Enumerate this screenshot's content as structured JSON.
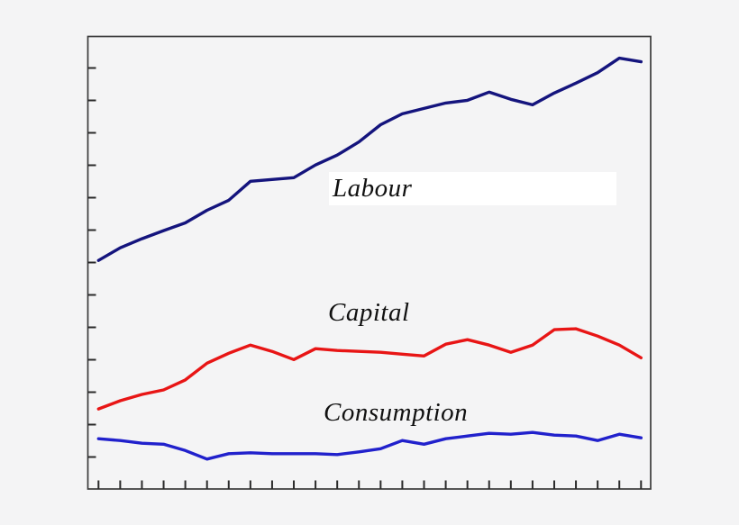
{
  "chart_data": {
    "type": "line",
    "title": "",
    "xlabel": "",
    "ylabel": "",
    "x_axis": {
      "tick_count": 26,
      "tick_labels_visible": false
    },
    "y_axis": {
      "tick_count": 13,
      "tick_labels_visible": false
    },
    "value_units": "percent of plot height (axes are unlabeled in the image)",
    "ylim": [
      0,
      100
    ],
    "grid": false,
    "legend_position": "inline-labels-on-plot",
    "series": [
      {
        "name": "Labour",
        "color": "#14147d",
        "values": [
          50.5,
          53.3,
          55.3,
          57.1,
          58.8,
          61.6,
          63.8,
          68.0,
          68.4,
          68.8,
          71.6,
          73.8,
          76.7,
          80.5,
          82.9,
          84.1,
          85.3,
          85.9,
          87.7,
          86.1,
          84.9,
          87.5,
          89.7,
          92.0,
          95.2,
          94.4
        ]
      },
      {
        "name": "Capital",
        "color": "#e81515",
        "values": [
          17.7,
          19.5,
          20.9,
          21.9,
          24.1,
          27.8,
          30.0,
          31.8,
          30.4,
          28.6,
          31.0,
          30.6,
          30.4,
          30.2,
          29.8,
          29.4,
          32.0,
          33.0,
          31.8,
          30.2,
          31.8,
          35.2,
          35.4,
          33.8,
          31.8,
          29.0
        ]
      },
      {
        "name": "Consumption",
        "color": "#2121cc",
        "values": [
          11.1,
          10.7,
          10.1,
          9.9,
          8.5,
          6.6,
          7.8,
          8.0,
          7.8,
          7.8,
          7.8,
          7.6,
          8.2,
          8.9,
          10.7,
          9.9,
          11.1,
          11.7,
          12.3,
          12.1,
          12.5,
          11.9,
          11.7,
          10.7,
          12.1,
          11.3
        ]
      }
    ],
    "colors": {
      "background": "#f4f4f5",
      "axis_frame": "#3b3b3b",
      "tick": "#2a2a2a",
      "label_text": "#111111",
      "labour_label_box": "#ffffff"
    }
  }
}
